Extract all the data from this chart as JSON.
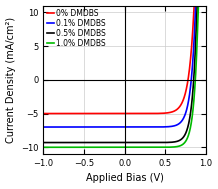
{
  "title": "",
  "xlabel": "Applied Bias (V)",
  "ylabel": "Current Density (mA/cm²)",
  "xlim": [
    -1.0,
    1.0
  ],
  "ylim": [
    -11,
    11
  ],
  "xticks": [
    -1.0,
    -0.5,
    0.0,
    0.5,
    1.0
  ],
  "yticks": [
    -10,
    -5,
    0,
    5,
    10
  ],
  "background_color": "#ffffff",
  "curves": [
    {
      "label": "0% DMDBS",
      "color": "#ff0000",
      "jsc": -5.0,
      "voc": 0.78,
      "n": 2.5
    },
    {
      "label": "0.1% DMDBS",
      "color": "#0000ff",
      "jsc": -7.0,
      "voc": 0.82,
      "n": 2.2
    },
    {
      "label": "0.5% DMDBS",
      "color": "#000000",
      "jsc": -9.3,
      "voc": 0.85,
      "n": 2.0
    },
    {
      "label": "1.0% DMDBS",
      "color": "#00bb00",
      "jsc": -10.0,
      "voc": 0.87,
      "n": 1.9
    }
  ],
  "legend_loc": "upper left",
  "legend_fontsize": 5.5,
  "tick_fontsize": 6,
  "label_fontsize": 7
}
